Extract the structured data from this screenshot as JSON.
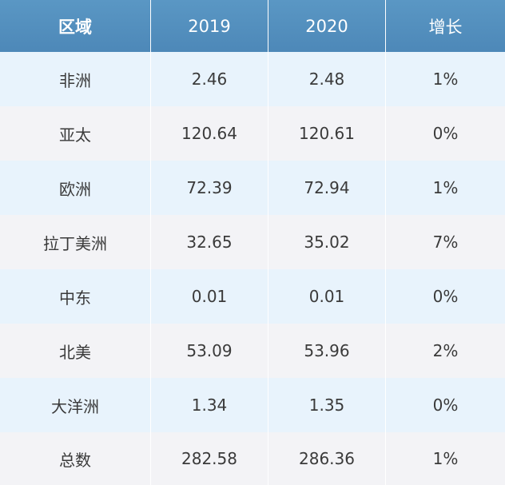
{
  "chart_data": {
    "type": "table",
    "columns": [
      "区域",
      "2019",
      "2020",
      "增长"
    ],
    "rows": [
      [
        "非洲",
        "2.46",
        "2.48",
        "1%"
      ],
      [
        "亚太",
        "120.64",
        "120.61",
        "0%"
      ],
      [
        "欧洲",
        "72.39",
        "72.94",
        "1%"
      ],
      [
        "拉丁美洲",
        "32.65",
        "35.02",
        "7%"
      ],
      [
        "中东",
        "0.01",
        "0.01",
        "0%"
      ],
      [
        "北美",
        "53.09",
        "53.96",
        "2%"
      ],
      [
        "大洋洲",
        "1.34",
        "1.35",
        "0%"
      ],
      [
        "总数",
        "282.58",
        "286.36",
        "1%"
      ]
    ]
  },
  "colors": {
    "header_bg": "#5090bf",
    "header_text": "#ffffff",
    "row_light_bg": "#e8f3fc",
    "row_grey_bg": "#f3f3f6",
    "cell_text": "#3a3a3a"
  }
}
